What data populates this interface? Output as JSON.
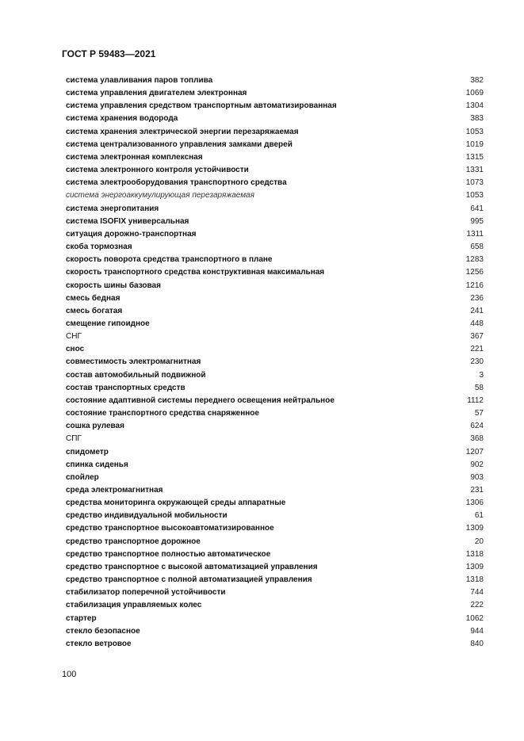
{
  "header": {
    "title": "ГОСТ Р 59483—2021"
  },
  "entries": [
    {
      "term": "система улавливания паров топлива",
      "page": "382",
      "style": "bold"
    },
    {
      "term": "система управления двигателем электронная",
      "page": "1069",
      "style": "bold"
    },
    {
      "term": "система управления средством транспортным автоматизированная",
      "page": "1304",
      "style": "bold"
    },
    {
      "term": "система хранения водорода",
      "page": "383",
      "style": "bold"
    },
    {
      "term": "система хранения электрической энергии перезаряжаемая",
      "page": "1053",
      "style": "bold"
    },
    {
      "term": "система централизованного управления замками дверей",
      "page": "1019",
      "style": "bold"
    },
    {
      "term": "система электронная комплексная",
      "page": "1315",
      "style": "bold"
    },
    {
      "term": "система электронного контроля устойчивости",
      "page": "1331",
      "style": "bold"
    },
    {
      "term": "система электрооборудования транспортного средства",
      "page": "1073",
      "style": "bold"
    },
    {
      "term": "система энергоаккумулирующая перезаряжаемая",
      "page": "1053",
      "style": "italic"
    },
    {
      "term": "система энергопитания",
      "page": "641",
      "style": "bold"
    },
    {
      "term": "система ISOFIX универсальная",
      "page": "995",
      "style": "bold"
    },
    {
      "term": "ситуация дорожно-транспортная",
      "page": "1311",
      "style": "bold"
    },
    {
      "term": "скоба тормозная",
      "page": "658",
      "style": "bold"
    },
    {
      "term": "скорость поворота средства транспортного в плане",
      "page": "1283",
      "style": "bold"
    },
    {
      "term": "скорость транспортного средства конструктивная максимальная",
      "page": "1256",
      "style": "bold"
    },
    {
      "term": "скорость шины базовая",
      "page": "1216",
      "style": "bold"
    },
    {
      "term": "смесь бедная",
      "page": "236",
      "style": "bold"
    },
    {
      "term": "смесь богатая",
      "page": "241",
      "style": "bold"
    },
    {
      "term": "смещение гипоидное",
      "page": "448",
      "style": "bold"
    },
    {
      "term": "СНГ",
      "page": "367",
      "style": "plain"
    },
    {
      "term": "снос",
      "page": "221",
      "style": "bold"
    },
    {
      "term": "совместимость электромагнитная",
      "page": "230",
      "style": "bold"
    },
    {
      "term": "состав автомобильный подвижной",
      "page": "3",
      "style": "bold"
    },
    {
      "term": "состав транспортных средств",
      "page": "58",
      "style": "bold"
    },
    {
      "term": "состояние адаптивной системы переднего освещения нейтральное",
      "page": "1112",
      "style": "bold"
    },
    {
      "term": "состояние транспортного средства снаряженное",
      "page": "57",
      "style": "bold"
    },
    {
      "term": "сошка рулевая",
      "page": "624",
      "style": "bold"
    },
    {
      "term": "СПГ",
      "page": "368",
      "style": "plain"
    },
    {
      "term": "спидометр",
      "page": "1207",
      "style": "bold"
    },
    {
      "term": "спинка сиденья",
      "page": "902",
      "style": "bold"
    },
    {
      "term": "спойлер",
      "page": "903",
      "style": "bold"
    },
    {
      "term": "среда электромагнитная",
      "page": "231",
      "style": "bold"
    },
    {
      "term": "средства мониторинга окружающей среды аппаратные",
      "page": "1306",
      "style": "bold"
    },
    {
      "term": "средство индивидуальной мобильности",
      "page": "61",
      "style": "bold"
    },
    {
      "term": "средство транспортное высокоавтоматизированное",
      "page": "1309",
      "style": "bold"
    },
    {
      "term": "средство транспортное дорожное",
      "page": "20",
      "style": "bold"
    },
    {
      "term": "средство транспортное полностью автоматическое",
      "page": "1318",
      "style": "bold"
    },
    {
      "term": "средство транспортное с высокой автоматизацией управления",
      "page": "1309",
      "style": "bold"
    },
    {
      "term": "средство транспортное с полной автоматизацией управления",
      "page": "1318",
      "style": "bold"
    },
    {
      "term": "стабилизатор поперечной устойчивости",
      "page": "744",
      "style": "bold"
    },
    {
      "term": "стабилизация управляемых колес",
      "page": "222",
      "style": "bold"
    },
    {
      "term": "стартер",
      "page": "1062",
      "style": "bold"
    },
    {
      "term": "стекло безопасное",
      "page": "944",
      "style": "bold"
    },
    {
      "term": "стекло ветровое",
      "page": "840",
      "style": "bold"
    }
  ],
  "footer": {
    "page_number": "100"
  }
}
